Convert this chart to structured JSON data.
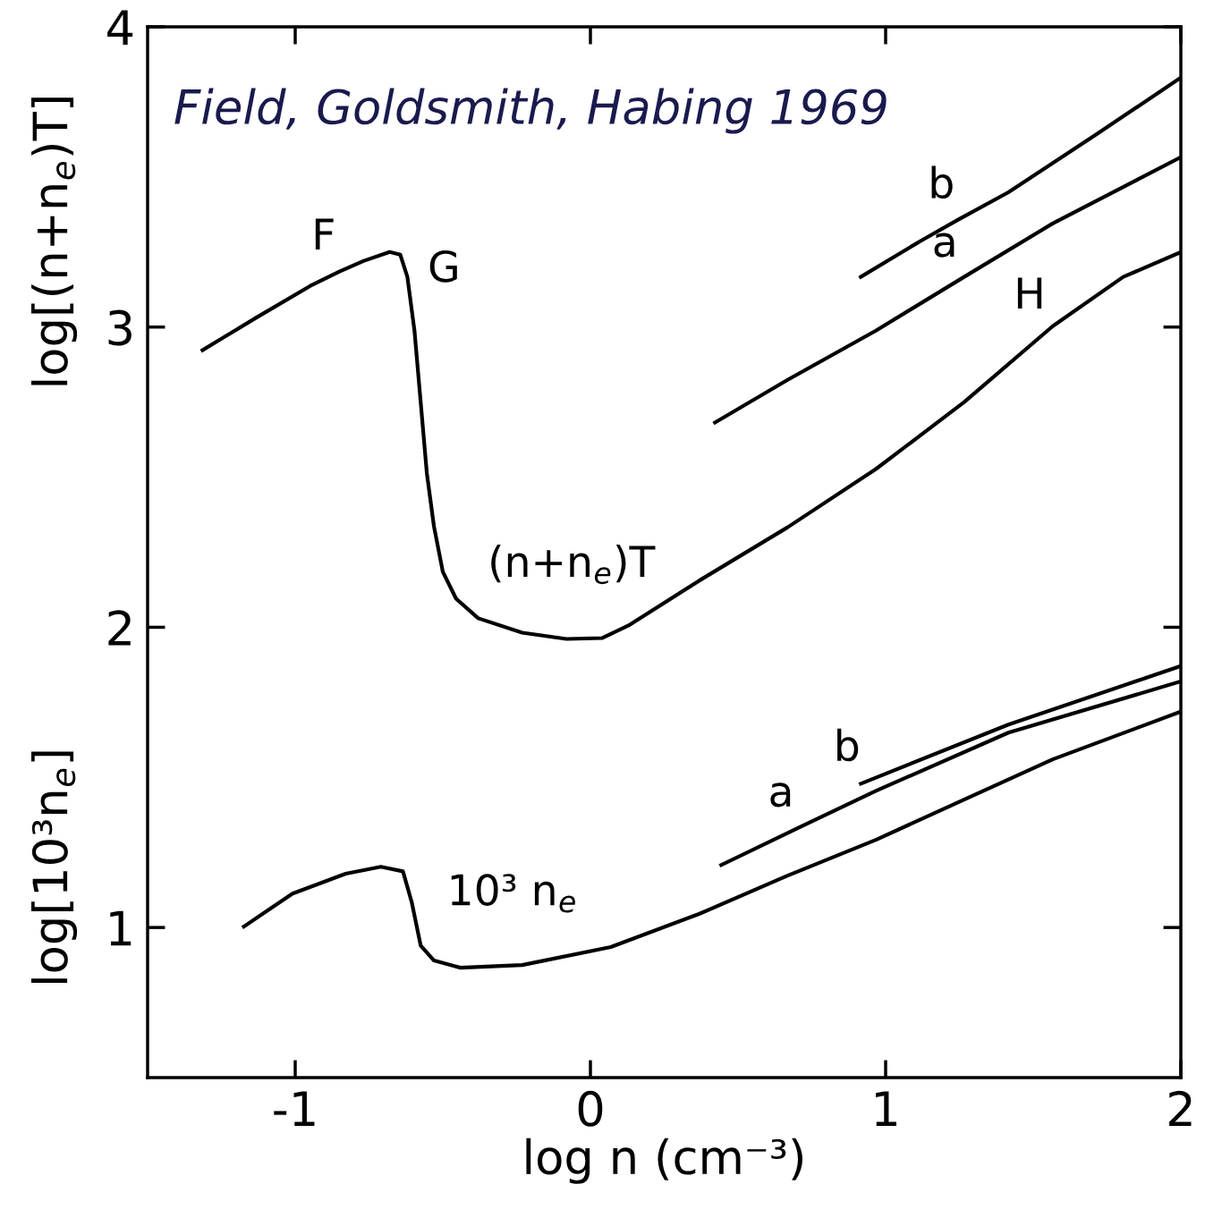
{
  "chart_data": {
    "type": "line",
    "xlabel": "log n (cm⁻³)",
    "ylabel": "log[(n+n$_{e}$)T]",
    "xlim": [
      -1.5,
      2
    ],
    "ylim": [
      0.5,
      4
    ],
    "xticks": [
      -1,
      0,
      1,
      2
    ],
    "yticks": [
      1,
      2,
      3,
      4
    ],
    "grid": false,
    "marker": "none",
    "line_style": "solid",
    "series": [
      {
        "color": "#000000",
        "x": [
          -1.314,
          -1.129,
          -0.949,
          -0.85,
          -0.769,
          -0.68,
          -0.644,
          -0.62,
          -0.596,
          -0.575,
          -0.554,
          -0.53,
          -0.5,
          -0.455,
          -0.38,
          -0.231,
          -0.081,
          0.039,
          0.129,
          0.368,
          0.668,
          0.967,
          1.266,
          1.566,
          1.805,
          1.994
        ],
        "values": [
          2.923,
          3.033,
          3.137,
          3.185,
          3.22,
          3.25,
          3.241,
          3.167,
          2.988,
          2.75,
          2.512,
          2.336,
          2.185,
          2.095,
          2.03,
          1.982,
          1.961,
          1.964,
          2.006,
          2.155,
          2.333,
          2.527,
          2.75,
          3.003,
          3.167,
          3.247
        ]
      },
      {
        "color": "#000000",
        "x": [
          0.422,
          0.668,
          0.967,
          1.266,
          1.566,
          1.994
        ],
        "values": [
          2.682,
          2.824,
          2.988,
          3.167,
          3.345,
          3.563
        ]
      },
      {
        "color": "#000000",
        "x": [
          0.916,
          1.117,
          1.25,
          1.416,
          1.716,
          1.994
        ],
        "values": [
          3.167,
          3.286,
          3.36,
          3.449,
          3.643,
          3.827
        ]
      },
      {
        "color": "#000000",
        "x": [
          -1.174,
          -1.009,
          -0.829,
          -0.71,
          -0.635,
          -0.605,
          -0.575,
          -0.53,
          -0.44,
          -0.231,
          0.069,
          0.368,
          0.668,
          0.967,
          1.266,
          1.566,
          1.994
        ],
        "values": [
          1.003,
          1.113,
          1.179,
          1.202,
          1.187,
          1.083,
          0.94,
          0.89,
          0.866,
          0.875,
          0.935,
          1.045,
          1.173,
          1.292,
          1.426,
          1.56,
          1.717
        ]
      },
      {
        "color": "#000000",
        "x": [
          0.443,
          0.7,
          0.967,
          1.416,
          1.994
        ],
        "values": [
          1.208,
          1.33,
          1.455,
          1.649,
          1.818
        ]
      },
      {
        "color": "#000000",
        "x": [
          0.916,
          1.416,
          1.994
        ],
        "values": [
          1.479,
          1.676,
          1.869
        ]
      }
    ],
    "annotations": [
      "Field, Goldsmith, Habing 1969",
      "log[10³n$_{e}$]",
      {
        "text": "F",
        "x": -0.85,
        "y": 3.185
      },
      {
        "text": "G",
        "x": -0.62,
        "y": 3.167
      },
      {
        "text": "H",
        "x": 1.566,
        "y": 3.003
      },
      {
        "text": "a",
        "x": 1.266,
        "y": 3.167
      },
      {
        "text": "b",
        "x": 1.25,
        "y": 3.36
      },
      {
        "text": "(n+n$_{e}$)T",
        "x": -0.081,
        "y": 1.961
      },
      {
        "text": "b",
        "x": 0.916,
        "y": 1.479
      },
      {
        "text": "a",
        "x": 0.7,
        "y": 1.33
      },
      {
        "text": "10³ n$_{e}$",
        "x": -0.231,
        "y": 0.875
      }
    ]
  }
}
